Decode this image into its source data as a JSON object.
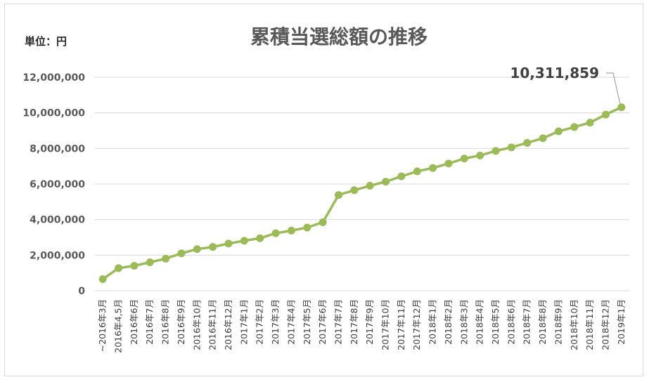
{
  "chart_data": {
    "type": "line",
    "title": "累積当選総額の推移",
    "unit_label": "単位：円",
    "ylim": [
      0,
      12000000
    ],
    "y_ticks": [
      "0",
      "2,000,000",
      "4,000,000",
      "6,000,000",
      "8,000,000",
      "10,000,000",
      "12,000,000"
    ],
    "grid": true,
    "legend": "none",
    "line_color": "#9bbb59",
    "categories": [
      "~2016年3月",
      "2016年4,5月",
      "2016年6月",
      "2016年7月",
      "2016年8月",
      "2016年9月",
      "2016年10月",
      "2016年11月",
      "2016年12月",
      "2017年1月",
      "2017年2月",
      "2017年3月",
      "2017年4月",
      "2017年5月",
      "2017年6月",
      "2017年7月",
      "2017年8月",
      "2017年9月",
      "2017年10月",
      "2017年11月",
      "2017年12月",
      "2018年1月",
      "2018年2月",
      "2018年3月",
      "2018年4月",
      "2018年5月",
      "2018年6月",
      "2018年7月",
      "2018年8月",
      "2018年9月",
      "2018年10月",
      "2018年11月",
      "2018年12月",
      "2019年1月"
    ],
    "values": [
      650000,
      1270000,
      1400000,
      1600000,
      1800000,
      2100000,
      2340000,
      2460000,
      2650000,
      2810000,
      2950000,
      3230000,
      3380000,
      3550000,
      3850000,
      5380000,
      5650000,
      5900000,
      6130000,
      6430000,
      6710000,
      6900000,
      7150000,
      7430000,
      7600000,
      7860000,
      8060000,
      8310000,
      8570000,
      8960000,
      9200000,
      9450000,
      9900000,
      10311859
    ],
    "annotations": [
      {
        "text": "10,311,859",
        "point_index": 33
      }
    ]
  }
}
